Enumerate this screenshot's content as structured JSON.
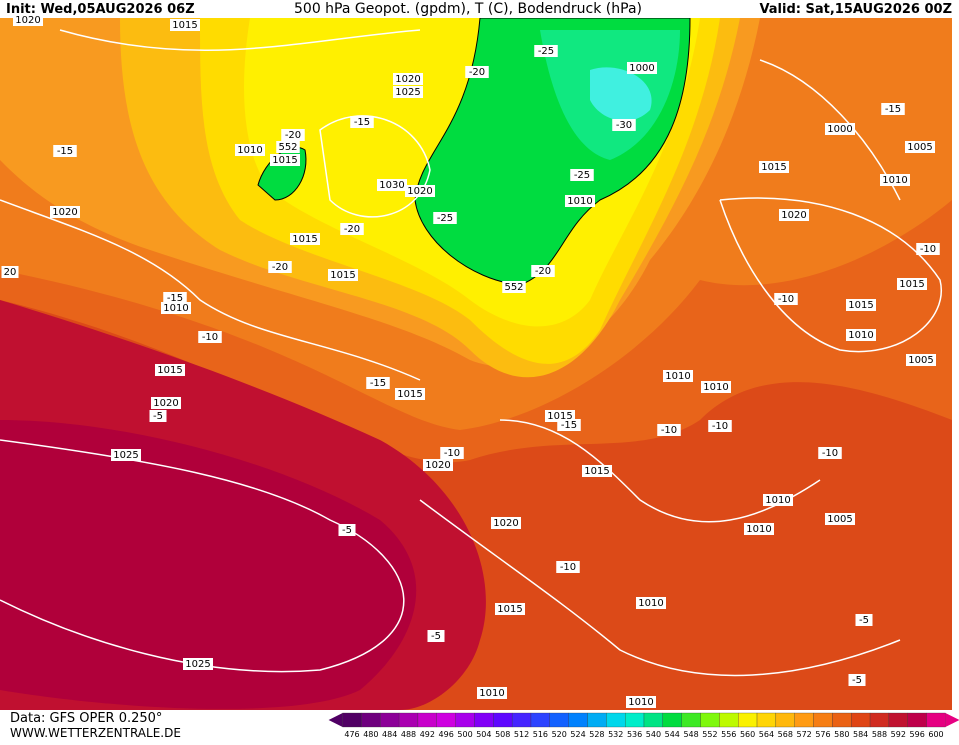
{
  "header": {
    "init": "Init: Wed,05AUG2026 06Z",
    "title": "500 hPa Geopot. (gpdm), T (C), Bodendruck (hPa)",
    "valid": "Valid: Sat,15AUG2026 00Z"
  },
  "map": {
    "labels": [
      "1020",
      "1015",
      "1020",
      "1025",
      "1010",
      "1015",
      "-20",
      "552",
      "-15",
      "1020",
      "1030",
      "1020",
      "1015",
      "-20",
      "-20",
      "1015",
      "-25",
      "-20",
      "1000",
      "-30",
      "-15",
      "-25",
      "1010",
      "-25",
      "-20",
      "552",
      "1015",
      "1000",
      "-15",
      "1005",
      "1010",
      "1020",
      "-10",
      "1015",
      "-10",
      "1015",
      "1010",
      "1005",
      "-15",
      "1010",
      "-10",
      "1015",
      "-15",
      "1015",
      "1020",
      "-5",
      "1010",
      "1010",
      "1015",
      "-15",
      "-10",
      "-10",
      "-10",
      "1020",
      "1025",
      "1015",
      "-10",
      "1010",
      "1010",
      "1005",
      "1020",
      "-5",
      "-10",
      "1015",
      "1010",
      "-5",
      "-5",
      "1025",
      "-5",
      "1010",
      "1010",
      "20"
    ]
  },
  "footer": {
    "source": "Data: GFS OPER 0.250°",
    "website": "WWW.WETTERZENTRALE.DE"
  },
  "legend": {
    "ticks": [
      476,
      480,
      484,
      488,
      492,
      496,
      500,
      504,
      508,
      512,
      516,
      520,
      524,
      528,
      532,
      536,
      540,
      544,
      548,
      552,
      556,
      560,
      564,
      568,
      572,
      576,
      580,
      584,
      588,
      592,
      596,
      600
    ]
  }
}
